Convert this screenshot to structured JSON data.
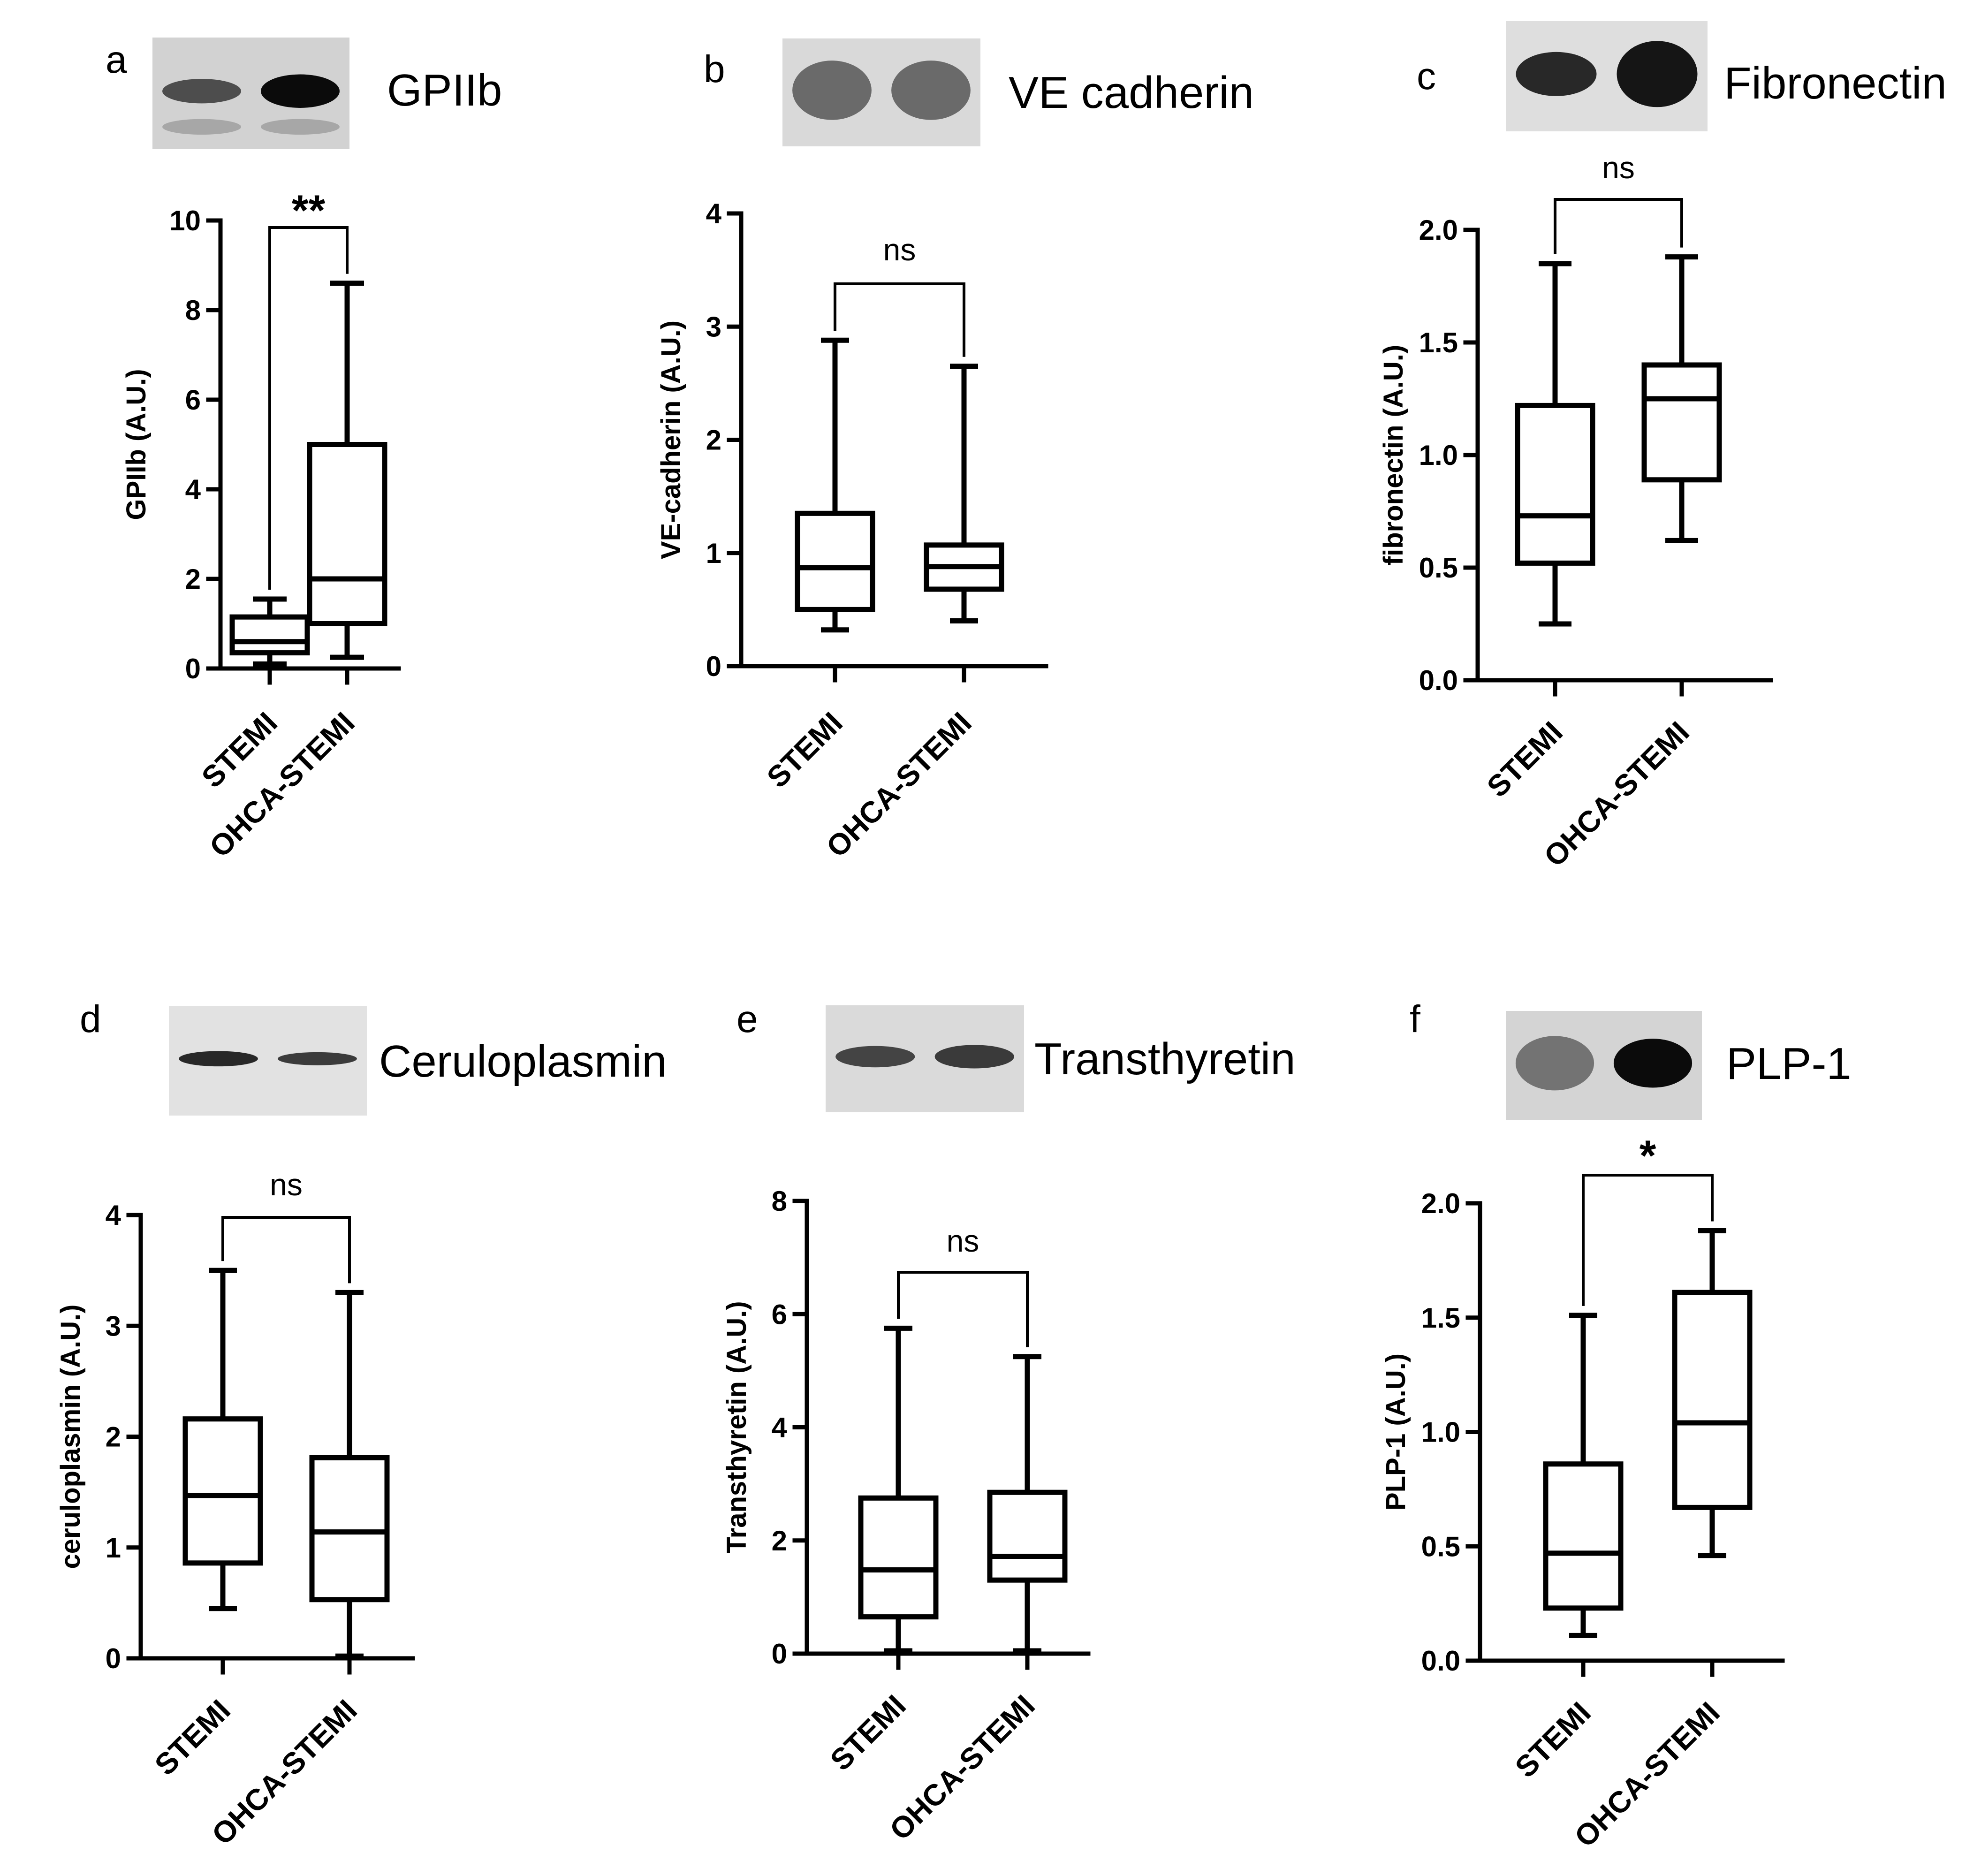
{
  "figure": {
    "panels": [
      {
        "letter": "a",
        "blot_label": "GPIIb",
        "blot": {
          "bg": "#d2d2d2",
          "bands": [
            {
              "lane": 0,
              "intensity": 0.65,
              "thick": 0.22
            },
            {
              "lane": 1,
              "intensity": 1.0,
              "thick": 0.3
            },
            {
              "lane": 0,
              "intensity": 0.18,
              "thick": 0.14,
              "offset": 0.32
            },
            {
              "lane": 1,
              "intensity": 0.18,
              "thick": 0.14,
              "offset": 0.32
            }
          ]
        },
        "significance": "**"
      },
      {
        "letter": "b",
        "blot_label": "VE cadherin",
        "blot": {
          "bg": "#d9d9d9",
          "bands": [
            {
              "lane": 0,
              "intensity": 0.5,
              "thick": 0.55
            },
            {
              "lane": 1,
              "intensity": 0.5,
              "thick": 0.55
            }
          ]
        },
        "significance": "ns"
      },
      {
        "letter": "c",
        "blot_label": "Fibronectin",
        "blot": {
          "bg": "#dedede",
          "bands": [
            {
              "lane": 0,
              "intensity": 0.85,
              "thick": 0.4
            },
            {
              "lane": 1,
              "intensity": 0.95,
              "thick": 0.6
            }
          ]
        },
        "significance": "ns"
      },
      {
        "letter": "d",
        "blot_label": "Ceruloplasmin",
        "blot": {
          "bg": "#e2e2e2",
          "bands": [
            {
              "lane": 0,
              "intensity": 0.85,
              "thick": 0.14
            },
            {
              "lane": 1,
              "intensity": 0.75,
              "thick": 0.12
            }
          ]
        },
        "significance": "ns"
      },
      {
        "letter": "e",
        "blot_label": "Transthyretin",
        "blot": {
          "bg": "#dadada",
          "bands": [
            {
              "lane": 0,
              "intensity": 0.7,
              "thick": 0.2
            },
            {
              "lane": 1,
              "intensity": 0.75,
              "thick": 0.22
            }
          ]
        },
        "significance": "ns"
      },
      {
        "letter": "f",
        "blot_label": "PLP-1",
        "blot": {
          "bg": "#d4d4d4",
          "bands": [
            {
              "lane": 0,
              "intensity": 0.45,
              "thick": 0.5
            },
            {
              "lane": 1,
              "intensity": 1.0,
              "thick": 0.45
            }
          ]
        },
        "significance": "*"
      }
    ]
  },
  "chart_data": [
    {
      "type": "box",
      "title": "GPIIb",
      "ylabel": "GPIIb (A.U.)",
      "categories": [
        "STEMI",
        "OHCA-STEMI"
      ],
      "ylim": [
        0,
        10
      ],
      "yticks": [
        "0",
        "2",
        "4",
        "6",
        "8",
        "10"
      ],
      "tick_values": [
        0,
        2,
        4,
        6,
        8,
        10
      ],
      "boxes": [
        {
          "min": 0.1,
          "q1": 0.35,
          "median": 0.6,
          "q3": 1.15,
          "max": 1.55
        },
        {
          "min": 0.25,
          "q1": 1.0,
          "median": 2.0,
          "q3": 5.0,
          "max": 8.6
        }
      ],
      "significance": "**"
    },
    {
      "type": "box",
      "title": "VE cadherin",
      "ylabel": "VE-cadherin (A.U.)",
      "categories": [
        "STEMI",
        "OHCA-STEMI"
      ],
      "ylim": [
        0,
        4
      ],
      "yticks": [
        "0",
        "1",
        "2",
        "3",
        "4"
      ],
      "tick_values": [
        0,
        1,
        2,
        3,
        4
      ],
      "boxes": [
        {
          "min": 0.32,
          "q1": 0.5,
          "median": 0.87,
          "q3": 1.35,
          "max": 2.88
        },
        {
          "min": 0.4,
          "q1": 0.68,
          "median": 0.88,
          "q3": 1.07,
          "max": 2.65
        }
      ],
      "significance": "ns"
    },
    {
      "type": "box",
      "title": "Fibronectin",
      "ylabel": "fibronectin (A.U.)",
      "categories": [
        "STEMI",
        "OHCA-STEMI"
      ],
      "ylim": [
        0,
        2
      ],
      "yticks": [
        "0.0",
        "0.5",
        "1.0",
        "1.5",
        "2.0"
      ],
      "tick_values": [
        0,
        0.5,
        1,
        1.5,
        2
      ],
      "boxes": [
        {
          "min": 0.25,
          "q1": 0.52,
          "median": 0.73,
          "q3": 1.22,
          "max": 1.85
        },
        {
          "min": 0.62,
          "q1": 0.89,
          "median": 1.25,
          "q3": 1.4,
          "max": 1.88
        }
      ],
      "significance": "ns"
    },
    {
      "type": "box",
      "title": "Ceruloplasmin",
      "ylabel": "ceruloplasmin (A.U.)",
      "categories": [
        "STEMI",
        "OHCA-STEMI"
      ],
      "ylim": [
        0,
        4
      ],
      "yticks": [
        "0",
        "1",
        "2",
        "3",
        "4"
      ],
      "tick_values": [
        0,
        1,
        2,
        3,
        4
      ],
      "boxes": [
        {
          "min": 0.45,
          "q1": 0.86,
          "median": 1.47,
          "q3": 2.16,
          "max": 3.5
        },
        {
          "min": 0.02,
          "q1": 0.53,
          "median": 1.14,
          "q3": 1.81,
          "max": 3.3
        }
      ],
      "significance": "ns"
    },
    {
      "type": "box",
      "title": "Transthyretin",
      "ylabel": "Transthyretin (A.U.)",
      "categories": [
        "STEMI",
        "OHCA-STEMI"
      ],
      "ylim": [
        0,
        8
      ],
      "yticks": [
        "0",
        "2",
        "4",
        "6",
        "8"
      ],
      "tick_values": [
        0,
        2,
        4,
        6,
        8
      ],
      "boxes": [
        {
          "min": 0.05,
          "q1": 0.65,
          "median": 1.48,
          "q3": 2.75,
          "max": 5.75
        },
        {
          "min": 0.05,
          "q1": 1.3,
          "median": 1.72,
          "q3": 2.85,
          "max": 5.25
        }
      ],
      "significance": "ns"
    },
    {
      "type": "box",
      "title": "PLP-1",
      "ylabel": "PLP-1 (A.U.)",
      "categories": [
        "STEMI",
        "OHCA-STEMI"
      ],
      "ylim": [
        0,
        2
      ],
      "yticks": [
        "0.0",
        "0.5",
        "1.0",
        "1.5",
        "2.0"
      ],
      "tick_values": [
        0,
        0.5,
        1,
        1.5,
        2
      ],
      "boxes": [
        {
          "min": 0.11,
          "q1": 0.23,
          "median": 0.47,
          "q3": 0.86,
          "max": 1.51
        },
        {
          "min": 0.46,
          "q1": 0.67,
          "median": 1.04,
          "q3": 1.61,
          "max": 1.88
        }
      ],
      "significance": "*"
    }
  ]
}
